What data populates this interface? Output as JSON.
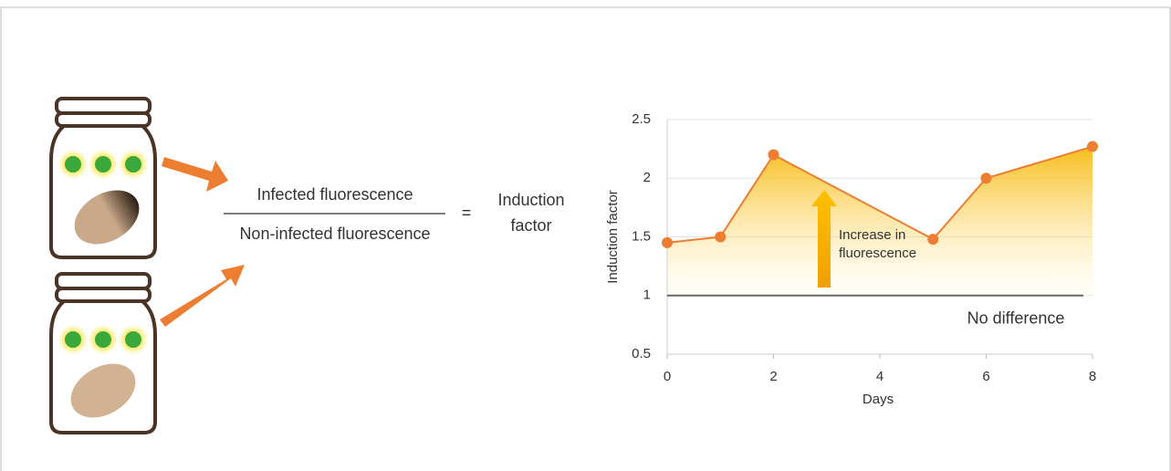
{
  "diagram": {
    "numerator": "Infected fluorescence",
    "denominator": "Non-infected fluorescence",
    "equals": "=",
    "result": "Induction factor"
  },
  "chart_data": {
    "type": "line",
    "xlabel": "Days",
    "ylabel": "Induction factor",
    "x": [
      0,
      1,
      2,
      5,
      6,
      8
    ],
    "values": [
      1.45,
      1.5,
      2.2,
      1.48,
      2.0,
      2.27
    ],
    "color": "#ed7d31",
    "xlim": [
      0,
      8
    ],
    "xticks": [
      0,
      2,
      4,
      6,
      8
    ],
    "ylim": [
      0.5,
      2.5
    ],
    "yticks": [
      0.5,
      1,
      1.5,
      2,
      2.5
    ],
    "grid": true,
    "reference_line": {
      "value": 1,
      "label": "No difference"
    },
    "annotation": "Increase in fluorescence"
  }
}
